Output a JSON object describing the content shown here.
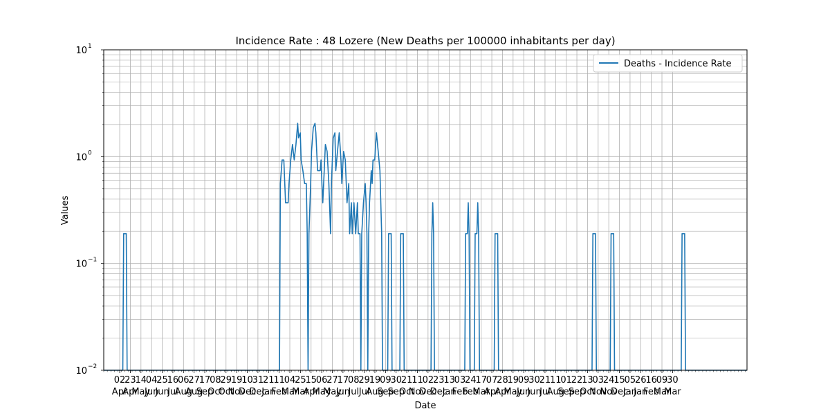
{
  "chart_data": {
    "type": "line",
    "title": "Incidence Rate : 48 Lozere (New Deaths per 100000 inhabitants per day)",
    "xlabel": "Date",
    "ylabel": "Values",
    "yscale": "log",
    "ylim": [
      0.01,
      10
    ],
    "y_ticks": [
      {
        "value": 0.01,
        "base": "10",
        "exp": "−2"
      },
      {
        "value": 0.1,
        "base": "10",
        "exp": "−1"
      },
      {
        "value": 1,
        "base": "10",
        "exp": "0"
      },
      {
        "value": 10,
        "base": "10",
        "exp": "1"
      }
    ],
    "grid": true,
    "legend_position": "top-right",
    "line_color": "#1f77b4",
    "x_tick_labels": [
      {
        "day": "02",
        "month": "Apr"
      },
      {
        "day": "23",
        "month": "Apr"
      },
      {
        "day": "14",
        "month": "May"
      },
      {
        "day": "04",
        "month": "Jun"
      },
      {
        "day": "25",
        "month": "Jun"
      },
      {
        "day": "16",
        "month": "Jul"
      },
      {
        "day": "06",
        "month": "Aug"
      },
      {
        "day": "27",
        "month": "Aug"
      },
      {
        "day": "17",
        "month": "Sep"
      },
      {
        "day": "08",
        "month": "Oct"
      },
      {
        "day": "29",
        "month": "Oct"
      },
      {
        "day": "19",
        "month": "Nov"
      },
      {
        "day": "10",
        "month": "Dec"
      },
      {
        "day": "31",
        "month": "Dec"
      },
      {
        "day": "21",
        "month": "Jan"
      },
      {
        "day": "11",
        "month": "Feb"
      },
      {
        "day": "04",
        "month": "Mar"
      },
      {
        "day": "25",
        "month": "Mar"
      },
      {
        "day": "15",
        "month": "Apr"
      },
      {
        "day": "06",
        "month": "May"
      },
      {
        "day": "27",
        "month": "May"
      },
      {
        "day": "17",
        "month": "Jun"
      },
      {
        "day": "08",
        "month": "Jul"
      },
      {
        "day": "29",
        "month": "Jul"
      },
      {
        "day": "19",
        "month": "Aug"
      },
      {
        "day": "09",
        "month": "Sep"
      },
      {
        "day": "30",
        "month": "Sep"
      },
      {
        "day": "21",
        "month": "Oct"
      },
      {
        "day": "11",
        "month": "Nov"
      },
      {
        "day": "02",
        "month": "Dec"
      },
      {
        "day": "23",
        "month": "Dec"
      },
      {
        "day": "13",
        "month": "Jan"
      },
      {
        "day": "03",
        "month": "Feb"
      },
      {
        "day": "24",
        "month": "Feb"
      },
      {
        "day": "17",
        "month": "Mar"
      },
      {
        "day": "07",
        "month": "Apr"
      },
      {
        "day": "28",
        "month": "Apr"
      },
      {
        "day": "19",
        "month": "May"
      },
      {
        "day": "09",
        "month": "Jun"
      },
      {
        "day": "30",
        "month": "Jun"
      },
      {
        "day": "21",
        "month": "Jul"
      },
      {
        "day": "11",
        "month": "Aug"
      },
      {
        "day": "01",
        "month": "Sep"
      },
      {
        "day": "22",
        "month": "Sep"
      },
      {
        "day": "13",
        "month": "Oct"
      },
      {
        "day": "03",
        "month": "Nov"
      },
      {
        "day": "24",
        "month": "Nov"
      },
      {
        "day": "15",
        "month": "Dec"
      },
      {
        "day": "05",
        "month": "Jan"
      },
      {
        "day": "26",
        "month": "Jan"
      },
      {
        "day": "16",
        "month": "Feb"
      },
      {
        "day": "09",
        "month": "Mar"
      },
      {
        "day": "30",
        "month": "Mar"
      }
    ],
    "series": [
      {
        "name": "Deaths - Incidence Rate",
        "x_start": "2020-03-18",
        "x_end": "2022-03-31",
        "points": [
          [
            "2020-03-18",
            0.01
          ],
          [
            "2020-04-09",
            0.01
          ],
          [
            "2020-04-10",
            0.19
          ],
          [
            "2020-04-13",
            0.19
          ],
          [
            "2020-04-14",
            0.01
          ],
          [
            "2020-10-07",
            0.01
          ],
          [
            "2020-10-08",
            0.56
          ],
          [
            "2020-10-10",
            0.93
          ],
          [
            "2020-10-12",
            0.93
          ],
          [
            "2020-10-14",
            0.37
          ],
          [
            "2020-10-17",
            0.37
          ],
          [
            "2020-10-18",
            0.56
          ],
          [
            "2020-10-20",
            0.93
          ],
          [
            "2020-10-22",
            1.3
          ],
          [
            "2020-10-24",
            0.93
          ],
          [
            "2020-10-26",
            1.3
          ],
          [
            "2020-10-28",
            2.05
          ],
          [
            "2020-10-29",
            1.5
          ],
          [
            "2020-10-31",
            1.67
          ],
          [
            "2020-11-01",
            0.93
          ],
          [
            "2020-11-03",
            0.74
          ],
          [
            "2020-11-05",
            0.56
          ],
          [
            "2020-11-07",
            0.56
          ],
          [
            "2020-11-08",
            0.19
          ],
          [
            "2020-11-09",
            0.01
          ],
          [
            "2020-11-10",
            0.19
          ],
          [
            "2020-11-12",
            0.56
          ],
          [
            "2020-11-13",
            1.12
          ],
          [
            "2020-11-15",
            1.86
          ],
          [
            "2020-11-17",
            2.05
          ],
          [
            "2020-11-18",
            1.67
          ],
          [
            "2020-11-20",
            0.74
          ],
          [
            "2020-11-23",
            0.74
          ],
          [
            "2020-11-24",
            0.93
          ],
          [
            "2020-11-25",
            0.56
          ],
          [
            "2020-11-26",
            0.37
          ],
          [
            "2020-11-27",
            0.56
          ],
          [
            "2020-11-29",
            1.3
          ],
          [
            "2020-12-01",
            1.12
          ],
          [
            "2020-12-03",
            0.56
          ],
          [
            "2020-12-05",
            0.19
          ],
          [
            "2020-12-06",
            0.56
          ],
          [
            "2020-12-08",
            1.49
          ],
          [
            "2020-12-10",
            1.67
          ],
          [
            "2020-12-11",
            0.74
          ],
          [
            "2020-12-13",
            1.12
          ],
          [
            "2020-12-15",
            1.67
          ],
          [
            "2020-12-17",
            0.93
          ],
          [
            "2020-12-18",
            0.56
          ],
          [
            "2020-12-20",
            1.12
          ],
          [
            "2020-12-22",
            0.93
          ],
          [
            "2020-12-24",
            0.37
          ],
          [
            "2020-12-26",
            0.56
          ],
          [
            "2020-12-27",
            0.19
          ],
          [
            "2020-12-29",
            0.37
          ],
          [
            "2020-12-30",
            0.19
          ],
          [
            "2021-01-01",
            0.37
          ],
          [
            "2021-01-03",
            0.19
          ],
          [
            "2021-01-05",
            0.37
          ],
          [
            "2021-01-06",
            0.19
          ],
          [
            "2021-01-08",
            0.19
          ],
          [
            "2021-01-09",
            0.01
          ],
          [
            "2021-01-10",
            0.19
          ],
          [
            "2021-01-12",
            0.37
          ],
          [
            "2021-01-14",
            0.56
          ],
          [
            "2021-01-15",
            0.37
          ],
          [
            "2021-01-16",
            0.19
          ],
          [
            "2021-01-17",
            0.01
          ],
          [
            "2021-01-18",
            0.19
          ],
          [
            "2021-01-19",
            0.37
          ],
          [
            "2021-01-21",
            0.74
          ],
          [
            "2021-01-22",
            0.56
          ],
          [
            "2021-01-23",
            0.93
          ],
          [
            "2021-01-25",
            0.93
          ],
          [
            "2021-01-26",
            1.3
          ],
          [
            "2021-01-27",
            1.67
          ],
          [
            "2021-01-29",
            1.12
          ],
          [
            "2021-01-31",
            0.74
          ],
          [
            "2021-02-02",
            0.19
          ],
          [
            "2021-02-03",
            0.01
          ],
          [
            "2021-02-09",
            0.01
          ],
          [
            "2021-02-10",
            0.19
          ],
          [
            "2021-02-13",
            0.19
          ],
          [
            "2021-02-14",
            0.01
          ],
          [
            "2021-02-23",
            0.01
          ],
          [
            "2021-02-24",
            0.19
          ],
          [
            "2021-02-27",
            0.19
          ],
          [
            "2021-02-28",
            0.01
          ],
          [
            "2021-03-31",
            0.01
          ],
          [
            "2021-04-01",
            0.19
          ],
          [
            "2021-04-02",
            0.37
          ],
          [
            "2021-04-03",
            0.19
          ],
          [
            "2021-04-04",
            0.01
          ],
          [
            "2021-05-09",
            0.01
          ],
          [
            "2021-05-10",
            0.19
          ],
          [
            "2021-05-12",
            0.19
          ],
          [
            "2021-05-13",
            0.37
          ],
          [
            "2021-05-14",
            0.19
          ],
          [
            "2021-05-15",
            0.01
          ],
          [
            "2021-05-20",
            0.01
          ],
          [
            "2021-05-21",
            0.19
          ],
          [
            "2021-05-23",
            0.19
          ],
          [
            "2021-05-24",
            0.37
          ],
          [
            "2021-05-25",
            0.19
          ],
          [
            "2021-05-26",
            0.01
          ],
          [
            "2021-06-12",
            0.01
          ],
          [
            "2021-06-13",
            0.19
          ],
          [
            "2021-06-16",
            0.19
          ],
          [
            "2021-06-17",
            0.01
          ],
          [
            "2021-10-03",
            0.01
          ],
          [
            "2021-10-04",
            0.19
          ],
          [
            "2021-10-07",
            0.19
          ],
          [
            "2021-10-08",
            0.01
          ],
          [
            "2021-10-24",
            0.01
          ],
          [
            "2021-10-25",
            0.19
          ],
          [
            "2021-10-28",
            0.19
          ],
          [
            "2021-10-29",
            0.01
          ],
          [
            "2022-01-14",
            0.01
          ],
          [
            "2022-01-15",
            0.19
          ],
          [
            "2022-01-18",
            0.19
          ],
          [
            "2022-01-19",
            0.01
          ],
          [
            "2022-03-31",
            0.01
          ]
        ]
      }
    ]
  }
}
